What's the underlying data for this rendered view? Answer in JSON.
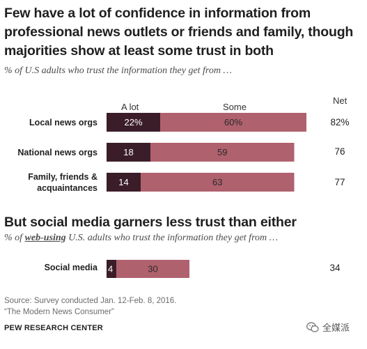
{
  "title": "Few have a lot of confidence in information from professional news outlets or friends and family, though majorities show at least some trust in both",
  "subtitle": "% of U.S adults who trust the information they get from …",
  "legend": {
    "a_lot": "A lot",
    "some": "Some",
    "net": "Net"
  },
  "section2": {
    "title": "But social media garners less trust than either",
    "subtitle_pre": "% of ",
    "subtitle_em": "web-using",
    "subtitle_post": " U.S. adults who trust the information they get from …"
  },
  "colors": {
    "a_lot": "#3b1d29",
    "some": "#b0616e",
    "label_dark": "#ffffff",
    "label_light": "#2a2a2a"
  },
  "chart_data": [
    {
      "type": "bar",
      "orientation": "horizontal",
      "stacked": true,
      "categories": [
        "Local news orgs",
        "National news orgs",
        "Family, friends & acquaintances"
      ],
      "category_lines": [
        [
          "Local news orgs"
        ],
        [
          "National news orgs"
        ],
        [
          "Family, friends &",
          "acquaintances"
        ]
      ],
      "series": [
        {
          "name": "A lot",
          "values": [
            22,
            18,
            14
          ],
          "labels": [
            "22%",
            "18",
            "14"
          ]
        },
        {
          "name": "Some",
          "values": [
            60,
            59,
            63
          ],
          "labels": [
            "60%",
            "59",
            "63"
          ]
        }
      ],
      "net": [
        {
          "label": "82%"
        },
        {
          "label": "76"
        },
        {
          "label": "77"
        }
      ]
    },
    {
      "type": "bar",
      "orientation": "horizontal",
      "stacked": true,
      "categories": [
        "Social media"
      ],
      "category_lines": [
        [
          "Social media"
        ]
      ],
      "series": [
        {
          "name": "A lot",
          "values": [
            4
          ],
          "labels": [
            "4"
          ]
        },
        {
          "name": "Some",
          "values": [
            30
          ],
          "labels": [
            "30"
          ]
        }
      ],
      "net": [
        {
          "label": "34"
        }
      ]
    }
  ],
  "source": [
    "Source: Survey conducted Jan. 12-Feb. 8, 2016.",
    "“The Modern News Consumer”"
  ],
  "footer": "PEW RESEARCH CENTER",
  "watermark": "全媒派"
}
